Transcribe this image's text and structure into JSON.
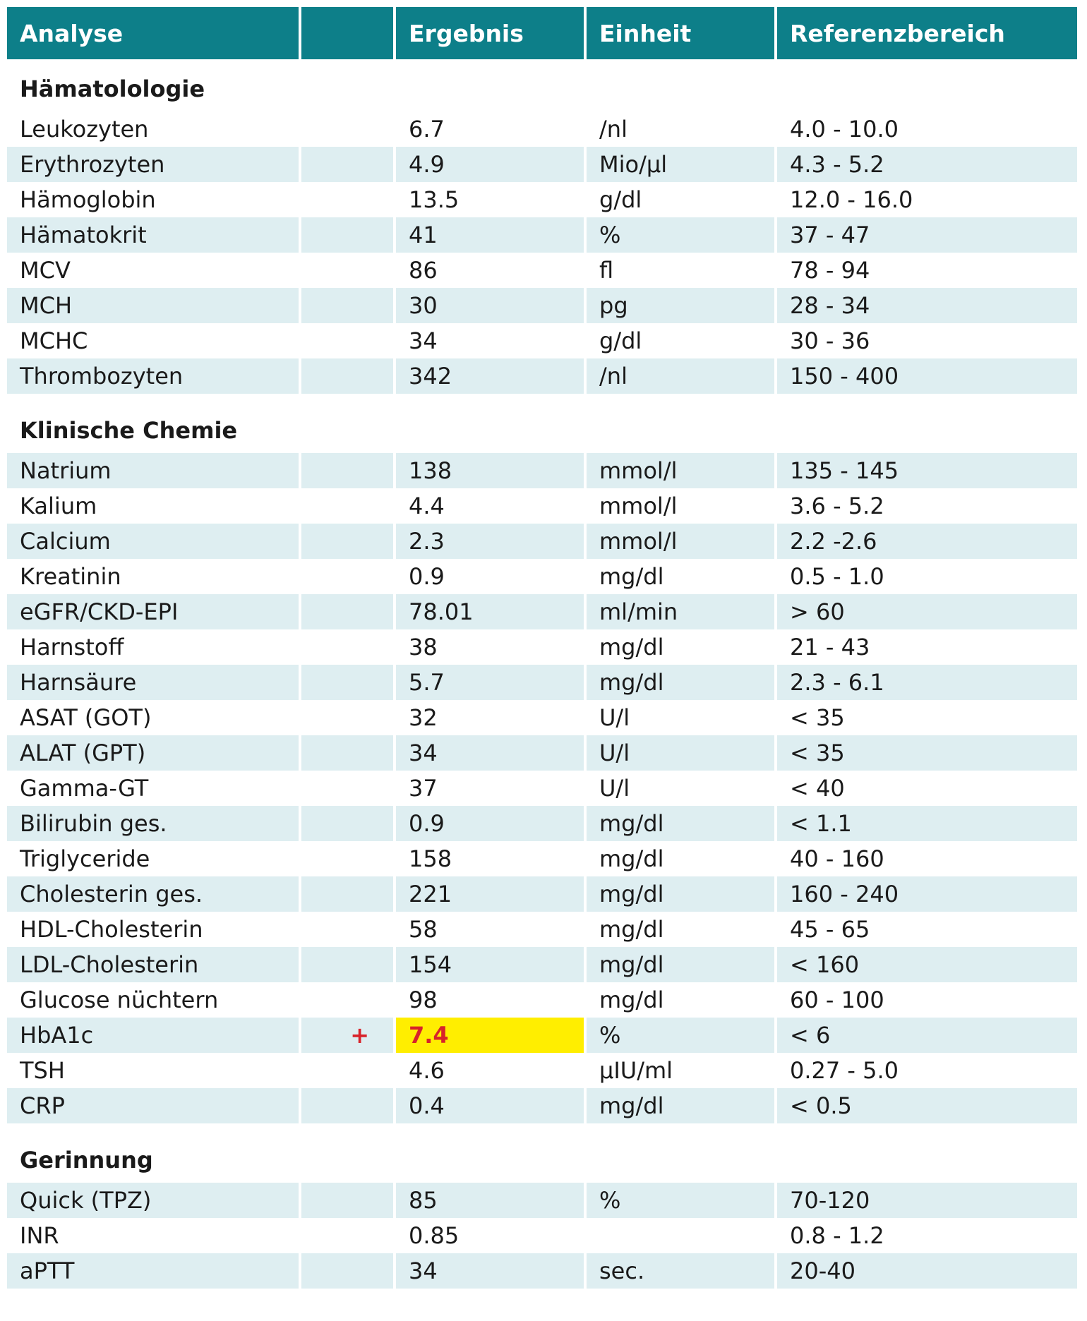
{
  "header": {
    "analyse": "Analyse",
    "flag": "",
    "ergebnis": "Ergebnis",
    "einheit": "Einheit",
    "referenz": "Referenzbereich"
  },
  "sections": [
    {
      "title": "Hämatolologie",
      "rows": [
        {
          "name": "Leukozyten",
          "flag": "",
          "value": "6.7",
          "unit": "/nl",
          "ref": "4.0 - 10.0"
        },
        {
          "name": "Erythrozyten",
          "flag": "",
          "value": "4.9",
          "unit": "Mio/µl",
          "ref": "4.3 - 5.2"
        },
        {
          "name": "Hämoglobin",
          "flag": "",
          "value": "13.5",
          "unit": "g/dl",
          "ref": "12.0 - 16.0"
        },
        {
          "name": "Hämatokrit",
          "flag": "",
          "value": "41",
          "unit": "%",
          "ref": "37 - 47"
        },
        {
          "name": "MCV",
          "flag": "",
          "value": "86",
          "unit": "fl",
          "ref": "78 - 94"
        },
        {
          "name": "MCH",
          "flag": "",
          "value": "30",
          "unit": "pg",
          "ref": "28 - 34"
        },
        {
          "name": "MCHC",
          "flag": "",
          "value": "34",
          "unit": "g/dl",
          "ref": "30 - 36"
        },
        {
          "name": "Thrombozyten",
          "flag": "",
          "value": "342",
          "unit": "/nl",
          "ref": "150 - 400"
        }
      ]
    },
    {
      "title": "Klinische Chemie",
      "rows": [
        {
          "name": "Natrium",
          "flag": "",
          "value": "138",
          "unit": "mmol/l",
          "ref": "135 - 145"
        },
        {
          "name": "Kalium",
          "flag": "",
          "value": "4.4",
          "unit": "mmol/l",
          "ref": "3.6 - 5.2"
        },
        {
          "name": "Calcium",
          "flag": "",
          "value": "2.3",
          "unit": "mmol/l",
          "ref": "2.2 -2.6"
        },
        {
          "name": "Kreatinin",
          "flag": "",
          "value": "0.9",
          "unit": "mg/dl",
          "ref": "0.5 - 1.0"
        },
        {
          "name": "eGFR/CKD-EPI",
          "flag": "",
          "value": "78.01",
          "unit": "ml/min",
          "ref": "> 60"
        },
        {
          "name": "Harnstoff",
          "flag": "",
          "value": "38",
          "unit": "mg/dl",
          "ref": "21 - 43"
        },
        {
          "name": "Harnsäure",
          "flag": "",
          "value": "5.7",
          "unit": "mg/dl",
          "ref": "2.3 - 6.1"
        },
        {
          "name": "ASAT (GOT)",
          "flag": "",
          "value": "32",
          "unit": "U/l",
          "ref": "< 35"
        },
        {
          "name": "ALAT (GPT)",
          "flag": "",
          "value": "34",
          "unit": "U/l",
          "ref": "< 35"
        },
        {
          "name": "Gamma-GT",
          "flag": "",
          "value": "37",
          "unit": "U/l",
          "ref": "< 40"
        },
        {
          "name": "Bilirubin ges.",
          "flag": "",
          "value": "0.9",
          "unit": "mg/dl",
          "ref": "< 1.1"
        },
        {
          "name": "Triglyceride",
          "flag": "",
          "value": "158",
          "unit": "mg/dl",
          "ref": "40 - 160"
        },
        {
          "name": "Cholesterin ges.",
          "flag": "",
          "value": "221",
          "unit": "mg/dl",
          "ref": "160 - 240"
        },
        {
          "name": "HDL-Cholesterin",
          "flag": "",
          "value": "58",
          "unit": "mg/dl",
          "ref": "45 - 65"
        },
        {
          "name": "LDL-Cholesterin",
          "flag": "",
          "value": "154",
          "unit": "mg/dl",
          "ref": "< 160"
        },
        {
          "name": "Glucose nüchtern",
          "flag": "",
          "value": "98",
          "unit": "mg/dl",
          "ref": "60 - 100"
        },
        {
          "name": "HbA1c",
          "flag": "+",
          "value": "7.4",
          "unit": "%",
          "ref": "< 6",
          "highlight": true
        },
        {
          "name": "TSH",
          "flag": "",
          "value": "4.6",
          "unit": "µIU/ml",
          "ref": "0.27 - 5.0"
        },
        {
          "name": "CRP",
          "flag": "",
          "value": "0.4",
          "unit": "mg/dl",
          "ref": "< 0.5"
        }
      ]
    },
    {
      "title": "Gerinnung",
      "rows": [
        {
          "name": "Quick (TPZ)",
          "flag": "",
          "value": "85",
          "unit": "%",
          "ref": "70-120"
        },
        {
          "name": "INR",
          "flag": "",
          "value": "0.85",
          "unit": "",
          "ref": "0.8 - 1.2"
        },
        {
          "name": "aPTT",
          "flag": "",
          "value": "34",
          "unit": "sec.",
          "ref": "20-40"
        }
      ]
    }
  ],
  "colors": {
    "header_bg": "#0d7f89",
    "stripe": "#deeef1",
    "highlight": "#ffee00",
    "flag_red": "#d8232a"
  }
}
